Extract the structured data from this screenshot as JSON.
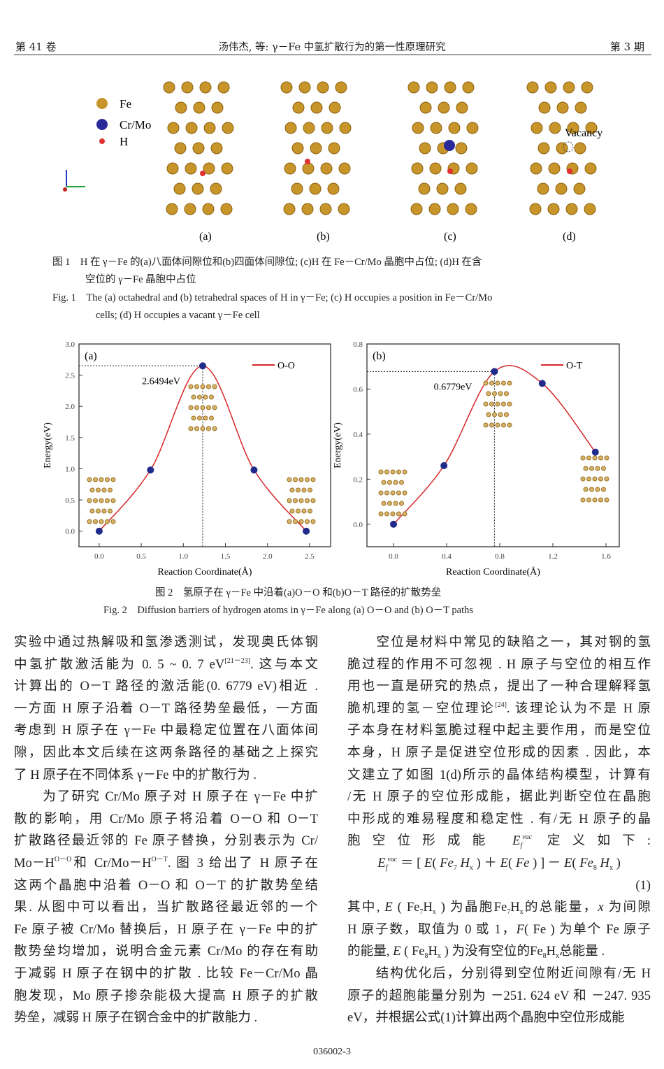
{
  "header": {
    "volume": "第 41 卷",
    "title": "汤伟杰, 等: γ－Fe 中氢扩散行为的第一性原理研究",
    "issue": "第 3 期"
  },
  "figure1": {
    "legend": [
      "Fe",
      "Cr/Mo",
      "H"
    ],
    "vacancy_label": "Vacancy",
    "panels": [
      "(a)",
      "(b)",
      "(c)",
      "(d)"
    ],
    "caption_cn_1": "图 1　H 在 γ－Fe 的(a)八面体间隙位和(b)四面体间隙位; (c)H 在 Fe－Cr/Mo 晶胞中占位; (d)H 在含",
    "caption_cn_2": "空位的 γ－Fe 晶胞中占位",
    "caption_en_1": "Fig. 1　The (a) octahedral and (b) tetrahedral spaces of H in γ－Fe; (c) H occupies a position in Fe－Cr/Mo",
    "caption_en_2": "cells; (d) H occupies a vacant γ－Fe cell",
    "colors": {
      "fe": "#c8952a",
      "crmo": "#2a2a9a",
      "h": "#e03030"
    }
  },
  "chart_data": [
    {
      "type": "line",
      "panel_label": "(a)",
      "series": [
        {
          "name": "O-O",
          "x": [
            0.0,
            0.61,
            1.23,
            1.84,
            2.46
          ],
          "y": [
            0.0,
            0.98,
            2.6494,
            0.98,
            0.0
          ]
        }
      ],
      "annotation": "2.6494eV",
      "xlabel": "Reaction Coordinate(Å)",
      "ylabel": "Energy(eV)",
      "xticks": [
        "0.0",
        "0.5",
        "1.0",
        "1.5",
        "2.0",
        "2.5"
      ],
      "yticks": [
        "0.0",
        "0.5",
        "1.0",
        "1.5",
        "2.0",
        "2.5",
        "3.0"
      ],
      "xlim": [
        -0.24,
        2.75
      ],
      "ylim": [
        -0.25,
        3.0
      ],
      "legend": "top-right",
      "grid": false,
      "line_color": "#d62728",
      "marker_color": "#1f2a8a"
    },
    {
      "type": "line",
      "panel_label": "(b)",
      "series": [
        {
          "name": "O-T",
          "x": [
            0.0,
            0.38,
            0.76,
            1.12,
            1.52
          ],
          "y": [
            0.0,
            0.26,
            0.6779,
            0.625,
            0.32
          ]
        }
      ],
      "annotation": "0.6779eV",
      "xlabel": "Reaction Coordinate(Å)",
      "ylabel": "Energy(eV)",
      "xticks": [
        "0.0",
        "0.4",
        "0.8",
        "1.2",
        "1.6"
      ],
      "yticks": [
        "0.0",
        "0.2",
        "0.4",
        "0.6",
        "0.8"
      ],
      "xlim": [
        -0.2,
        1.7
      ],
      "ylim": [
        -0.1,
        0.8
      ],
      "legend": "top-right",
      "grid": false,
      "line_color": "#d62728",
      "marker_color": "#1f2a8a"
    }
  ],
  "figure2": {
    "caption_cn": "图 2　氢原子在 γ－Fe 中沿着(a)O－O 和(b)O－T 路径的扩散势垒",
    "caption_en": "Fig. 2　Diffusion barriers of hydrogen atoms in γ－Fe along (a) O－O and (b) O－T paths"
  },
  "body_left": [
    [
      {
        "t": "实验中通过热解吸和氢渗透测试，发现奥氏体钢"
      }
    ],
    [
      {
        "t": "中氢扩散激活能为 0. 5 ~ 0. 7 eV"
      },
      {
        "t": "[21－23]",
        "sup": 1
      },
      {
        "t": ". 这与本文"
      }
    ],
    [
      {
        "t": "计算出的 O－T 路径的激活能(0. 6779 eV)相近 ."
      }
    ],
    [
      {
        "t": "一方面 H 原子沿着 O－T 路径势垒最低，一方面"
      }
    ],
    [
      {
        "t": "考虑到 H 原子在 γ－Fe 中最稳定位置在八面体间"
      }
    ],
    [
      {
        "t": "隙，因此本文后续在这两条路径的基础之上探究"
      }
    ],
    [
      {
        "t": "了 H 原子在不同体系 γ－Fe 中的扩散行为 ."
      }
    ],
    [
      {
        "t": "　　为了研究 Cr/Mo 原子对 H 原子在 γ－Fe 中扩"
      }
    ],
    [
      {
        "t": "散的影响，用 Cr/Mo 原子将沿着 O－O 和 O－T"
      }
    ],
    [
      {
        "t": "扩散路径最近邻的 Fe 原子替换，分别表示为 Cr/"
      }
    ],
    [
      {
        "t": "Mo－H"
      },
      {
        "t": "O－O",
        "sup": 1
      },
      {
        "t": "和 Cr/Mo－H"
      },
      {
        "t": "O－T",
        "sup": 1
      },
      {
        "t": ". 图 3 给出了 H 原子在"
      }
    ],
    [
      {
        "t": "这两个晶胞中沿着 O－O 和 O－T 的扩散势垒结"
      }
    ],
    [
      {
        "t": "果. 从图中可以看出，当扩散路径最近邻的一个"
      }
    ],
    [
      {
        "t": "Fe 原子被 Cr/Mo 替换后，H 原子在 γ－Fe 中的扩"
      }
    ],
    [
      {
        "t": "散势垒均增加，说明合金元素 Cr/Mo 的存在有助"
      }
    ],
    [
      {
        "t": "于减弱 H 原子在钢中的扩散 . 比较 Fe－Cr/Mo 晶"
      }
    ],
    [
      {
        "t": "胞发现，Mo 原子掺杂能极大提高 H 原子的扩散"
      }
    ],
    [
      {
        "t": "势垒，减弱 H 原子在钢合金中的扩散能力 ."
      }
    ]
  ],
  "body_right": [
    [
      {
        "t": "　　空位是材料中常见的缺陷之一，其对钢的氢"
      }
    ],
    [
      {
        "t": "脆过程的作用不可忽视 . H 原子与空位的相互作"
      }
    ],
    [
      {
        "t": "用也一直是研究的热点，提出了一种合理解释氢"
      }
    ],
    [
      {
        "t": "脆机理的氢－空位理论"
      },
      {
        "t": "[24]",
        "sup": 1
      },
      {
        "t": ". 该理论认为不是 H 原"
      }
    ],
    [
      {
        "t": "子本身在材料氢脆过程中起主要作用，而是空位"
      }
    ],
    [
      {
        "t": "本身，H 原子是促进空位形成的因素 . 因此，本"
      }
    ],
    [
      {
        "t": "文建立了如图 1(d)所示的晶体结构模型，计算有"
      }
    ],
    [
      {
        "t": "/无 H 原子的空位形成能，据此判断空位在晶胞"
      }
    ],
    [
      {
        "t": "中形成的难易程度和稳定性 . 有/无 H 原子的晶"
      }
    ],
    [
      {
        "t": "胞空位形成能 "
      },
      {
        "t": "E",
        "i": 1
      },
      {
        "t": "f",
        "sub": 1,
        "i": 1
      },
      {
        "t": "vac",
        "sup": 1,
        "i": 1
      },
      {
        "t": " 定义如下:"
      }
    ],
    [
      {
        "t": "E",
        "i": 1
      },
      {
        "t": "f",
        "sub": 1,
        "i": 1
      },
      {
        "t": "vac",
        "sup": 1,
        "i": 1
      },
      {
        "t": " ＝ [ "
      },
      {
        "t": "E",
        "i": 1
      },
      {
        "t": "( "
      },
      {
        "t": "Fe",
        "i": 1
      },
      {
        "t": "7",
        "sub": 1
      },
      {
        "t": " H",
        "i": 1
      },
      {
        "t": "x",
        "sub": 1
      },
      {
        "t": " ) ＋ "
      },
      {
        "t": "E",
        "i": 1
      },
      {
        "t": "( "
      },
      {
        "t": "Fe",
        "i": 1
      },
      {
        "t": " ) ] － "
      },
      {
        "t": "E",
        "i": 1
      },
      {
        "t": "( "
      },
      {
        "t": "Fe",
        "i": 1
      },
      {
        "t": "8",
        "sub": 1
      },
      {
        "t": " H",
        "i": 1
      },
      {
        "t": "x",
        "sub": 1
      },
      {
        "t": " )"
      }
    ],
    [
      {
        "t": "(1)"
      }
    ],
    [
      {
        "t": "其中, "
      },
      {
        "t": "E",
        "i": 1
      },
      {
        "t": " ( Fe"
      },
      {
        "t": "7",
        "sub": 1
      },
      {
        "t": "H"
      },
      {
        "t": "x",
        "sub": 1
      },
      {
        "t": " ) 为晶胞Fe"
      },
      {
        "t": "7",
        "sub": 1
      },
      {
        "t": "H"
      },
      {
        "t": "x",
        "sub": 1
      },
      {
        "t": "的总能量，"
      },
      {
        "t": "x",
        "i": 1
      },
      {
        "t": " 为间隙"
      }
    ],
    [
      {
        "t": "H 原子数，取值为 0 或 1，"
      },
      {
        "t": "F",
        "i": 1
      },
      {
        "t": "( Fe ) 为单个 Fe 原子"
      }
    ],
    [
      {
        "t": "的能量, "
      },
      {
        "t": "E",
        "i": 1
      },
      {
        "t": " ( Fe"
      },
      {
        "t": "8",
        "sub": 1
      },
      {
        "t": "H"
      },
      {
        "t": "x",
        "sub": 1
      },
      {
        "t": " ) 为没有空位的Fe"
      },
      {
        "t": "8",
        "sub": 1
      },
      {
        "t": "H"
      },
      {
        "t": "x",
        "sub": 1
      },
      {
        "t": "总能量 ."
      }
    ],
    [
      {
        "t": "　　结构优化后，分别得到空位附近间隙有/无 H"
      }
    ],
    [
      {
        "t": "原子的超胞能量分别为 －251. 624 eV 和 －247. 935"
      }
    ],
    [
      {
        "t": "eV，并根据公式(1)计算出两个晶胞中空位形成能"
      }
    ]
  ],
  "footer": {
    "page": "036002-3"
  }
}
